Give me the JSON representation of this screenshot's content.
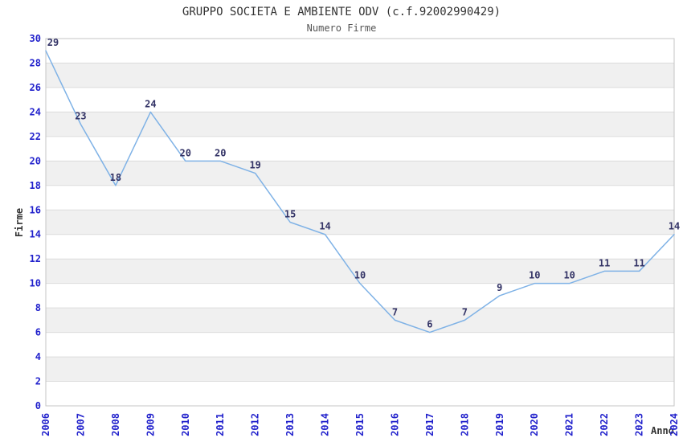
{
  "chart_data": {
    "type": "line",
    "title": "GRUPPO SOCIETA E AMBIENTE ODV (c.f.92002990429)",
    "subtitle": "Numero Firme",
    "xlabel": "Anno",
    "ylabel": "Firme",
    "categories": [
      "2006",
      "2007",
      "2008",
      "2009",
      "2010",
      "2011",
      "2012",
      "2013",
      "2014",
      "2015",
      "2016",
      "2017",
      "2018",
      "2019",
      "2020",
      "2021",
      "2022",
      "2023",
      "2024"
    ],
    "values": [
      29,
      23,
      18,
      24,
      20,
      20,
      19,
      15,
      14,
      10,
      7,
      6,
      7,
      9,
      10,
      10,
      11,
      11,
      14
    ],
    "ylim": [
      0,
      30
    ],
    "ytick_step": 2,
    "grid": true,
    "legend": "none",
    "colors": {
      "line": "#7fb2e6",
      "band_even": "#ffffff",
      "band_odd": "#f0f0f0",
      "gridline": "#dcdcdc",
      "plot_border": "#c4c4c4",
      "tick_label": "#2222cc",
      "data_label": "#333366"
    }
  }
}
